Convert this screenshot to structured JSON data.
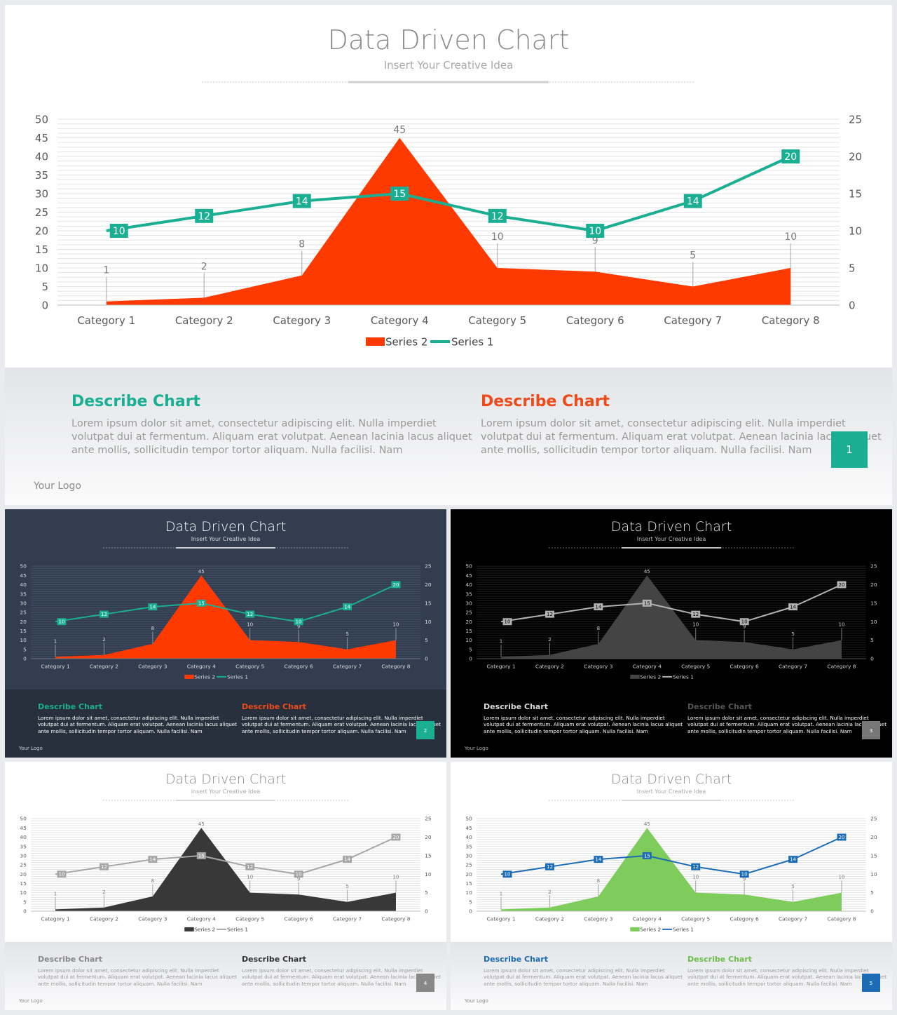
{
  "chart_data": {
    "type": "area",
    "title": "Data Driven Chart",
    "subtitle": "Insert Your Creative Idea",
    "categories": [
      "Category 1",
      "Category 2",
      "Category 3",
      "Category 4",
      "Category 5",
      "Category 6",
      "Category 7",
      "Category 8"
    ],
    "series": [
      {
        "name": "Series 2",
        "type": "area",
        "axis": "left",
        "values": [
          1,
          2,
          8,
          45,
          10,
          9,
          5,
          10
        ]
      },
      {
        "name": "Series 1",
        "type": "line",
        "axis": "right",
        "values": [
          10,
          12,
          14,
          15,
          12,
          10,
          14,
          20
        ]
      }
    ],
    "ylim_left": [
      0,
      50
    ],
    "ylim_right": [
      0,
      25
    ],
    "yticks_left": [
      "0",
      "5",
      "10",
      "15",
      "20",
      "25",
      "30",
      "35",
      "40",
      "45",
      "50"
    ],
    "yticks_right": [
      "0",
      "5",
      "10",
      "15",
      "20",
      "25"
    ],
    "grid": true,
    "legend_placement": "bottom-center"
  },
  "description": {
    "left_heading": "Describe Chart",
    "right_heading": "Describe Chart",
    "body": "Lorem ipsum dolor sit amet, consectetur adipiscing elit. Nulla imperdiet volutpat dui at fermentum. Aliquam erat volutpat. Aenean lacinia lacus aliquet ante mollis, sollicitudin tempor tortor aliquam. Nulla facilisi. Nam",
    "body_lines": [
      "Lorem ipsum dolor sit amet, consectetur adipiscing elit. Nulla imperdiet",
      "volutpat dui at fermentum. Aliquam erat volutpat. Aenean lacinia lacus aliquet",
      "ante mollis, sollicitudin tempor tortor aliquam. Nulla facilisi. Nam"
    ]
  },
  "logo": "Your Logo",
  "slides": [
    {
      "page": "1",
      "theme": "white",
      "area_color": "#ff3a00",
      "line_color": "#1aae92",
      "left_heading_color": "#1aae92",
      "right_heading_color": "#f04a1a",
      "page_box_color": "#1aae92"
    },
    {
      "page": "2",
      "theme": "navy",
      "area_color": "#ff3a00",
      "line_color": "#1aae92",
      "left_heading_color": "#1aae92",
      "right_heading_color": "#f04a1a",
      "page_box_color": "#1aae92"
    },
    {
      "page": "3",
      "theme": "black",
      "area_color": "#444444",
      "line_color": "#b3b3b3",
      "left_heading_color": "#d9d9d9",
      "right_heading_color": "#555555",
      "page_box_color": "#777777"
    },
    {
      "page": "4",
      "theme": "white",
      "area_color": "#383838",
      "line_color": "#a6a6a6",
      "left_heading_color": "#888888",
      "right_heading_color": "#333333",
      "page_box_color": "#888888"
    },
    {
      "page": "5",
      "theme": "white",
      "area_color": "#7dcc5c",
      "line_color": "#1b6cb5",
      "left_heading_color": "#1b6cb5",
      "right_heading_color": "#6cc04a",
      "page_box_color": "#1b6cb5"
    }
  ]
}
